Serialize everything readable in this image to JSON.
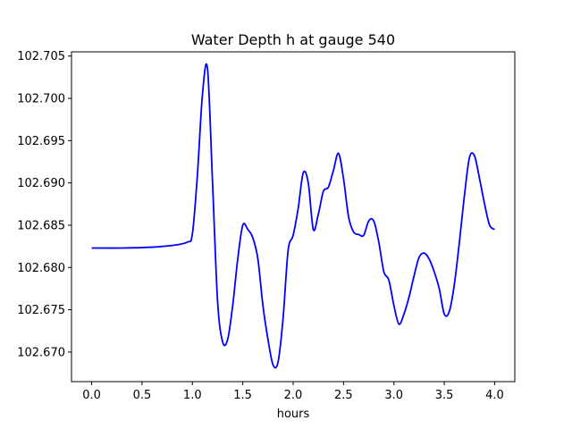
{
  "chart_data": {
    "type": "line",
    "title": "Water Depth h at gauge 540",
    "xlabel": "hours",
    "ylabel": "",
    "xlim": [
      -0.2,
      4.2
    ],
    "ylim": [
      102.6665,
      102.7055
    ],
    "xticks": [
      0.0,
      0.5,
      1.0,
      1.5,
      2.0,
      2.5,
      3.0,
      3.5,
      4.0
    ],
    "xtick_labels": [
      "0.0",
      "0.5",
      "1.0",
      "1.5",
      "2.0",
      "2.5",
      "3.0",
      "3.5",
      "4.0"
    ],
    "yticks": [
      102.67,
      102.675,
      102.68,
      102.685,
      102.69,
      102.695,
      102.7,
      102.705
    ],
    "ytick_labels": [
      "102.670",
      "102.675",
      "102.680",
      "102.685",
      "102.690",
      "102.695",
      "102.700",
      "102.705"
    ],
    "grid": false,
    "series": [
      {
        "color": "#0000ff",
        "x": [
          0.0,
          0.3,
          0.6,
          0.8,
          0.95,
          1.0,
          1.05,
          1.1,
          1.15,
          1.2,
          1.25,
          1.3,
          1.35,
          1.4,
          1.45,
          1.5,
          1.55,
          1.6,
          1.65,
          1.7,
          1.75,
          1.8,
          1.85,
          1.9,
          1.95,
          2.0,
          2.05,
          2.1,
          2.15,
          2.2,
          2.25,
          2.3,
          2.35,
          2.4,
          2.45,
          2.5,
          2.55,
          2.6,
          2.65,
          2.7,
          2.75,
          2.8,
          2.85,
          2.9,
          2.95,
          3.0,
          3.05,
          3.1,
          3.15,
          3.2,
          3.25,
          3.3,
          3.35,
          3.4,
          3.45,
          3.5,
          3.55,
          3.6,
          3.65,
          3.7,
          3.75,
          3.8,
          3.85,
          3.9,
          3.95,
          4.0
        ],
        "y": [
          102.6823,
          102.6823,
          102.6824,
          102.6826,
          102.683,
          102.684,
          102.691,
          102.7005,
          102.7035,
          102.69,
          102.676,
          102.6712,
          102.6715,
          102.6755,
          102.681,
          102.685,
          102.6845,
          102.6835,
          102.681,
          102.6755,
          102.6715,
          102.6685,
          102.6688,
          102.674,
          102.682,
          102.6838,
          102.687,
          102.6912,
          102.69,
          102.6845,
          102.6863,
          102.689,
          102.6895,
          102.6915,
          102.6935,
          102.6905,
          102.686,
          102.6842,
          102.6839,
          102.6838,
          102.6855,
          102.6855,
          102.683,
          102.6795,
          102.6785,
          102.6755,
          102.6733,
          102.6745,
          102.6765,
          102.679,
          102.6812,
          102.6817,
          102.681,
          102.6795,
          102.6775,
          102.6745,
          102.6748,
          102.678,
          102.683,
          102.6885,
          102.693,
          102.6932,
          102.6905,
          102.6875,
          102.685,
          102.6845
        ]
      }
    ]
  }
}
